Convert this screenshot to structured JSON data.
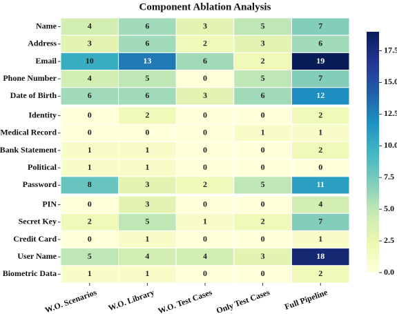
{
  "chart_data": {
    "type": "heatmap",
    "title": "Component Ablation Analysis",
    "categories": [
      "W.O. Scenarios",
      "W.O. Library",
      "W.O. Test Cases",
      "Only Test Cases",
      "Full Pipeline"
    ],
    "y_categories": [
      "Name",
      "Address",
      "Email",
      "Phone Number",
      "Date of Birth",
      "Identity",
      "Medical Record",
      "Bank Statement",
      "Political",
      "Password",
      "PIN",
      "Secret Key",
      "Credit Card",
      "User Name",
      "Biometric Data"
    ],
    "values": [
      [
        4,
        6,
        3,
        5,
        7
      ],
      [
        3,
        6,
        2,
        3,
        6
      ],
      [
        10,
        13,
        6,
        2,
        19
      ],
      [
        4,
        5,
        0,
        5,
        7
      ],
      [
        6,
        6,
        3,
        6,
        12
      ],
      [
        0,
        2,
        0,
        0,
        2
      ],
      [
        0,
        0,
        0,
        1,
        1
      ],
      [
        1,
        1,
        0,
        0,
        2
      ],
      [
        1,
        1,
        0,
        0,
        0
      ],
      [
        8,
        3,
        2,
        5,
        11
      ],
      [
        0,
        3,
        0,
        0,
        4
      ],
      [
        2,
        5,
        1,
        2,
        7
      ],
      [
        0,
        1,
        0,
        0,
        1
      ],
      [
        5,
        4,
        4,
        3,
        18
      ],
      [
        1,
        1,
        0,
        0,
        2
      ]
    ],
    "colormap": "YlGnBu",
    "clim": [
      0,
      19
    ],
    "cticks": [
      {
        "value": 0,
        "label": "0.0"
      },
      2.5,
      {
        "value": 5,
        "label": "5.0"
      },
      7.5,
      {
        "value": 10,
        "label": "10.0"
      },
      12.5,
      {
        "value": 15,
        "label": "15.0"
      },
      17.5
    ]
  }
}
